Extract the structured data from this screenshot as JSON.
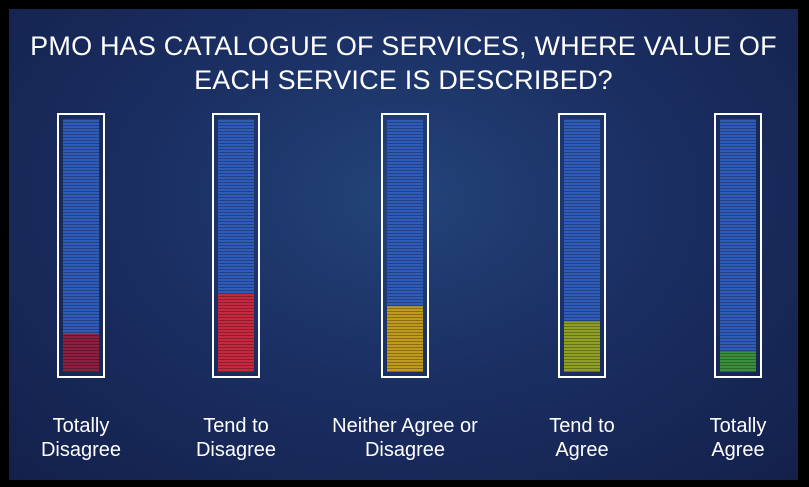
{
  "chart_data": {
    "type": "bar",
    "title_lines": [
      "PMO HAS CATALOGUE OF SERVICES, WHERE VALUE OF",
      "EACH SERVICE IS DESCRIBED?"
    ],
    "categories": [
      [
        "Totally",
        "Disagree"
      ],
      [
        "Tend to",
        "Disagree"
      ],
      [
        "Neither Agree or",
        "Disagree"
      ],
      [
        "Tend to",
        "Agree"
      ],
      [
        "Totally",
        "Agree"
      ]
    ],
    "values": [
      15,
      31,
      26,
      20,
      8
    ],
    "ylim": [
      0,
      100
    ],
    "colors": [
      "#8e1e42",
      "#c6283f",
      "#bf9a1d",
      "#8e9f24",
      "#3c8f3a"
    ],
    "empty_color": "#2f5cb8",
    "grid": false,
    "legend": "none"
  }
}
